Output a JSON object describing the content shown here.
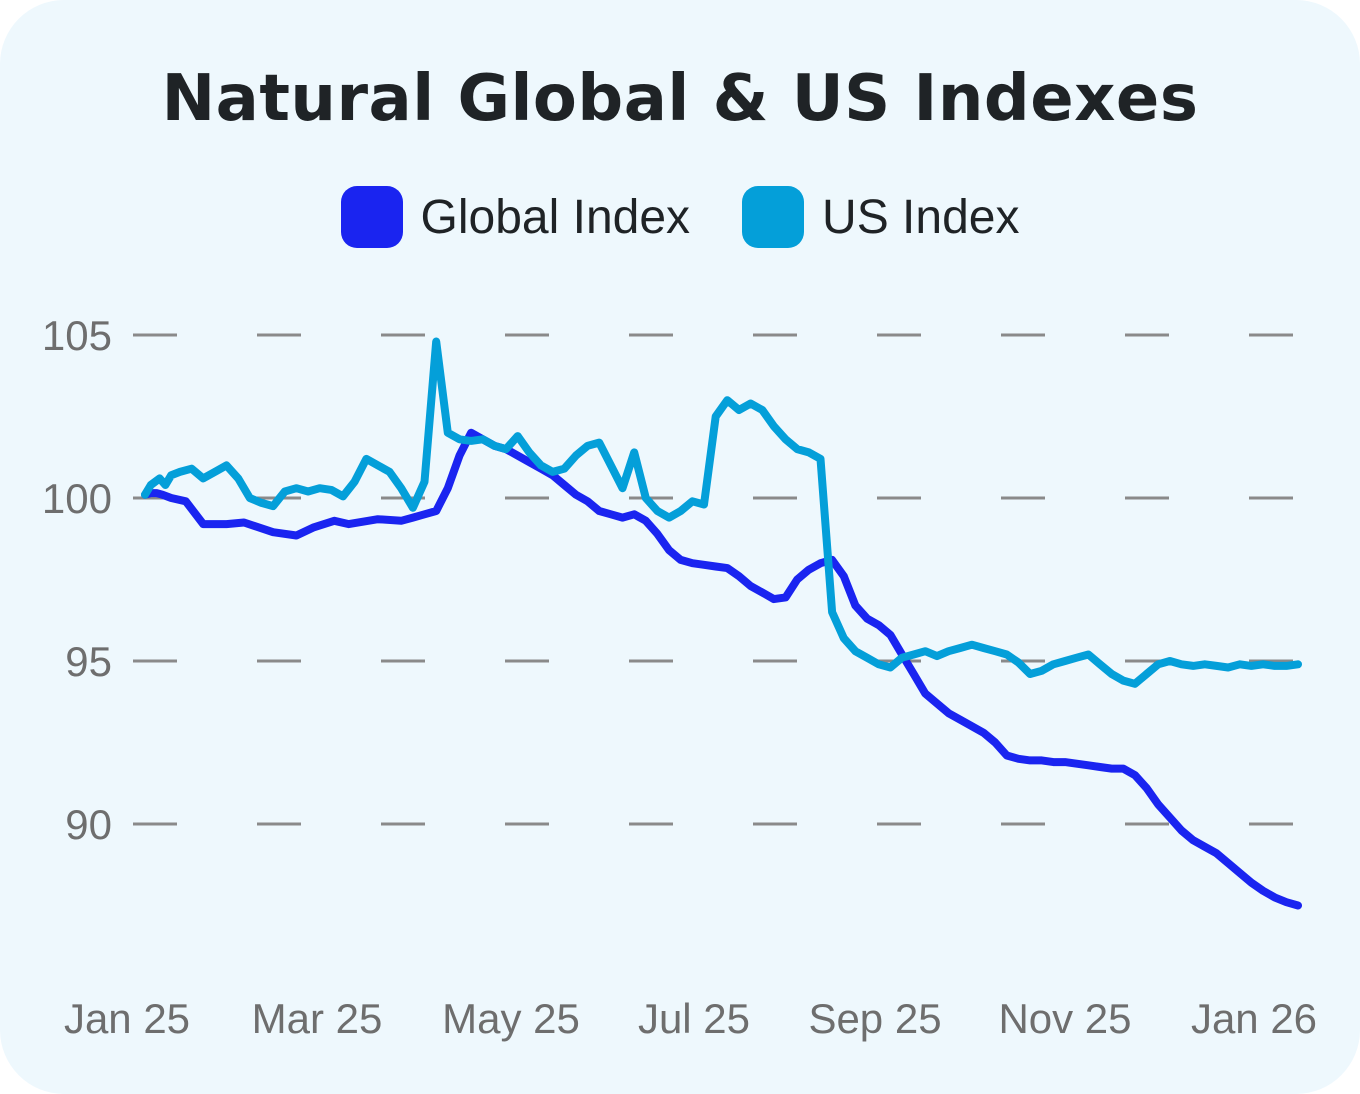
{
  "chart_data": {
    "type": "line",
    "title": "Natural Global & US Indexes",
    "xlabel": "",
    "ylabel": "",
    "ylim": [
      86,
      106
    ],
    "yticks": [
      90,
      95,
      100,
      105
    ],
    "y_tick_labels": [
      "90",
      "95",
      "100",
      "105"
    ],
    "x_tick_labels": [
      "Jan 25",
      "Mar 25",
      "May 25",
      "Jul 25",
      "Sep 25",
      "Nov 25",
      "Jan 26"
    ],
    "grid": true,
    "legend_position": "top-center",
    "series": [
      {
        "name": "Global Index",
        "color": "#1a24f0",
        "x": [
          0,
          2,
          4,
          6,
          9,
          14,
          20,
          28,
          34,
          44,
          52,
          58,
          65,
          70,
          80,
          88,
          92,
          96,
          100,
          104,
          108,
          112,
          116,
          120,
          124,
          128,
          132,
          136,
          140,
          144,
          148,
          152,
          156,
          160,
          164,
          168,
          172,
          176,
          180,
          184,
          188,
          192,
          196,
          200,
          204,
          208,
          212,
          216,
          220,
          224,
          228,
          232,
          236,
          240,
          244,
          248,
          252,
          256,
          260,
          264,
          268,
          272,
          276,
          280,
          284,
          288,
          292,
          296,
          300,
          304,
          308,
          312,
          316,
          320,
          324,
          328,
          332,
          336,
          340,
          344,
          348,
          352,
          356,
          360,
          364,
          368,
          372,
          376,
          380,
          384,
          388,
          392,
          396
        ],
        "values": [
          100.1,
          100.15,
          100.15,
          100.1,
          100.0,
          99.9,
          99.2,
          99.2,
          99.25,
          98.95,
          98.85,
          99.1,
          99.3,
          99.2,
          99.35,
          99.3,
          99.4,
          99.5,
          99.6,
          100.3,
          101.3,
          102.0,
          101.8,
          101.6,
          101.5,
          101.3,
          101.1,
          100.9,
          100.7,
          100.4,
          100.1,
          99.9,
          99.6,
          99.5,
          99.4,
          99.5,
          99.3,
          98.9,
          98.4,
          98.1,
          98.0,
          97.95,
          97.9,
          97.85,
          97.6,
          97.3,
          97.1,
          96.9,
          96.95,
          97.5,
          97.8,
          98.0,
          98.1,
          97.6,
          96.7,
          96.3,
          96.1,
          95.8,
          95.2,
          94.6,
          94.0,
          93.7,
          93.4,
          93.2,
          93.0,
          92.8,
          92.5,
          92.1,
          92.0,
          91.95,
          91.95,
          91.9,
          91.9,
          91.85,
          91.8,
          91.75,
          91.7,
          91.7,
          91.5,
          91.1,
          90.6,
          90.2,
          89.8,
          89.5,
          89.3,
          89.1,
          88.8,
          88.5,
          88.2,
          87.95,
          87.75,
          87.6,
          87.5
        ]
      },
      {
        "name": "US Index",
        "color": "#049fd9",
        "x": [
          0,
          2,
          5,
          7,
          9,
          12,
          16,
          20,
          24,
          28,
          32,
          36,
          40,
          44,
          48,
          52,
          56,
          60,
          64,
          68,
          72,
          76,
          80,
          84,
          88,
          92,
          96,
          100,
          104,
          108,
          112,
          116,
          120,
          124,
          128,
          132,
          136,
          140,
          144,
          148,
          152,
          156,
          160,
          164,
          168,
          172,
          176,
          180,
          184,
          188,
          192,
          196,
          200,
          204,
          208,
          212,
          216,
          220,
          224,
          228,
          232,
          236,
          240,
          244,
          248,
          252,
          256,
          260,
          264,
          268,
          272,
          276,
          280,
          284,
          288,
          292,
          296,
          300,
          304,
          308,
          312,
          316,
          320,
          324,
          328,
          332,
          336,
          340,
          344,
          348,
          352,
          356,
          360,
          364,
          368,
          372,
          376,
          380,
          384,
          388,
          392,
          396
        ],
        "values": [
          100.1,
          100.4,
          100.6,
          100.4,
          100.7,
          100.8,
          100.9,
          100.6,
          100.8,
          101.0,
          100.6,
          100.0,
          99.85,
          99.75,
          100.2,
          100.3,
          100.2,
          100.3,
          100.25,
          100.05,
          100.5,
          101.2,
          101.0,
          100.8,
          100.3,
          99.7,
          100.5,
          104.8,
          102.0,
          101.8,
          101.75,
          101.8,
          101.6,
          101.5,
          101.9,
          101.4,
          101.0,
          100.8,
          100.9,
          101.3,
          101.6,
          101.7,
          101.0,
          100.3,
          101.4,
          100.0,
          99.6,
          99.4,
          99.6,
          99.9,
          99.8,
          102.5,
          103.0,
          102.7,
          102.9,
          102.7,
          102.2,
          101.8,
          101.5,
          101.4,
          101.2,
          96.5,
          95.7,
          95.3,
          95.1,
          94.9,
          94.8,
          95.1,
          95.2,
          95.3,
          95.15,
          95.3,
          95.4,
          95.5,
          95.4,
          95.3,
          95.2,
          94.95,
          94.6,
          94.7,
          94.9,
          95.0,
          95.1,
          95.2,
          94.9,
          94.6,
          94.4,
          94.3,
          94.6,
          94.9,
          95.0,
          94.9,
          94.85,
          94.9,
          94.85,
          94.8,
          94.9,
          94.85,
          94.9,
          94.85,
          94.85,
          94.9
        ]
      }
    ]
  }
}
